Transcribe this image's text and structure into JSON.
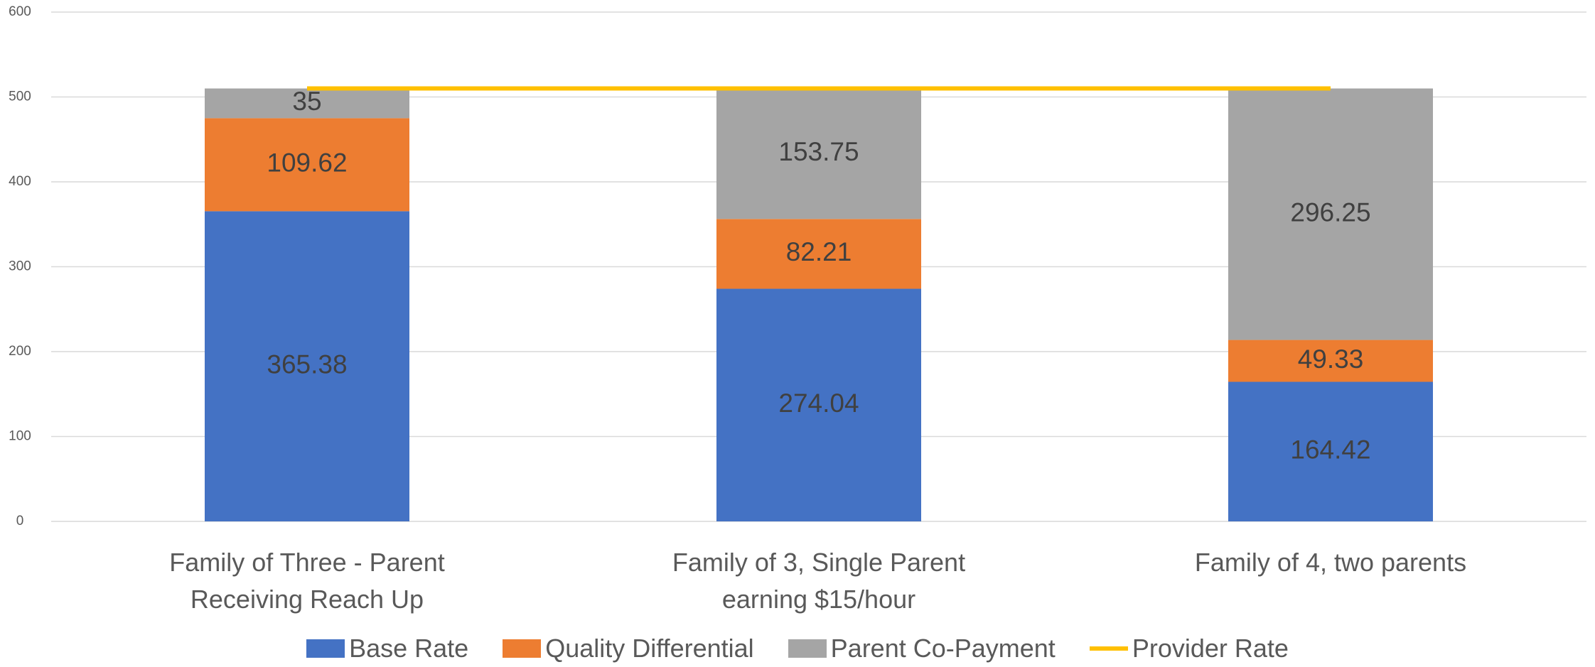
{
  "chart_data": {
    "type": "stacked_bar",
    "categories": [
      "Family of Three - Parent Receiving Reach Up",
      "Family of 3, Single Parent earning $15/hour",
      "Family of 4, two parents"
    ],
    "series": [
      {
        "name": "Base Rate",
        "color": "#4472c4",
        "values": [
          365.38,
          274.04,
          164.42
        ]
      },
      {
        "name": "Quality Differential",
        "color": "#ed7d31",
        "values": [
          109.62,
          82.21,
          49.33
        ]
      },
      {
        "name": "Parent Co-Payment",
        "color": "#a5a5a5",
        "values": [
          35,
          153.75,
          296.25
        ]
      },
      {
        "name": "Provider Rate",
        "color": "#ffc000",
        "type": "line",
        "values": [
          510,
          510,
          510
        ]
      }
    ],
    "ylim": [
      0,
      600
    ],
    "yticks": [
      0,
      100,
      200,
      300,
      400,
      500,
      600
    ],
    "grid": true,
    "legend": "bottom"
  }
}
